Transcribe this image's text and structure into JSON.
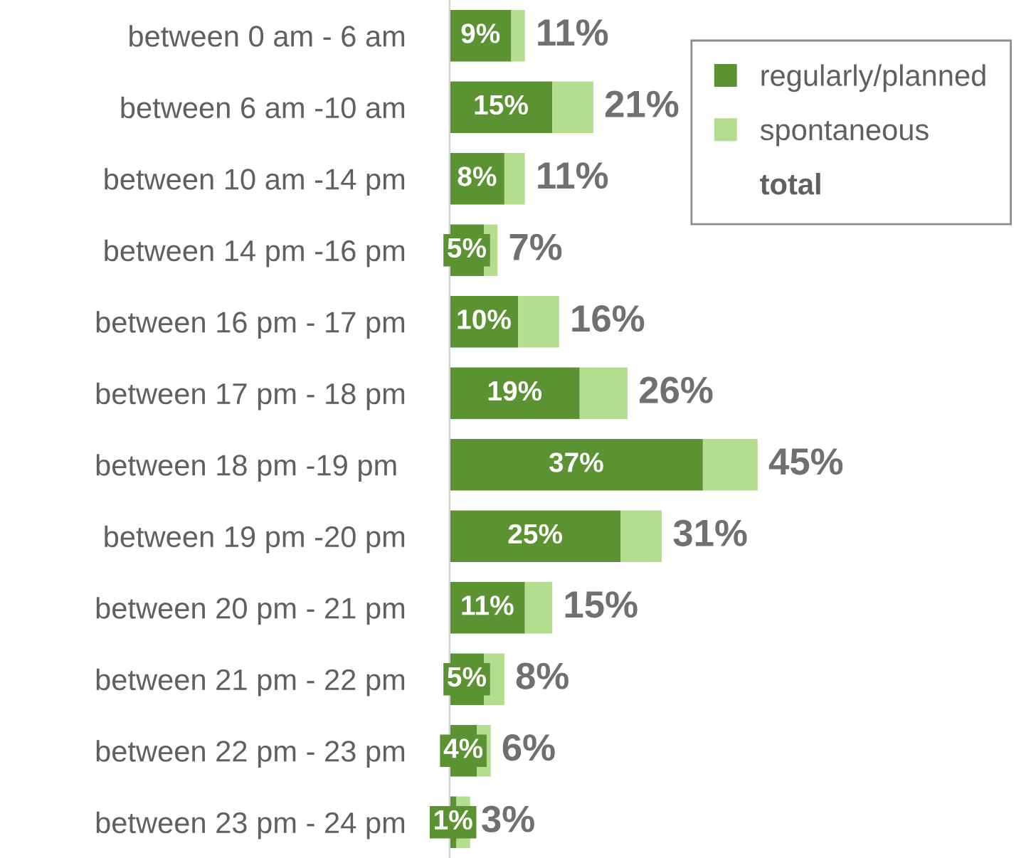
{
  "chart_data": {
    "type": "bar",
    "orientation": "horizontal",
    "stacked": true,
    "categories": [
      "between 0 am - 6 am",
      "between 6 am -10 am",
      "between 10 am -14 pm",
      "between 14 pm -16 pm",
      "between 16 pm - 17 pm",
      "between 17 pm - 18 pm",
      "between 18 pm -19 pm ",
      "between 19 pm -20 pm",
      "between 20 pm - 21 pm",
      "between 21 pm - 22 pm",
      "between 22 pm - 23 pm",
      "between 23 pm - 24 pm"
    ],
    "series": [
      {
        "name": "regularly/planned",
        "color": "#5b9232",
        "values": [
          9,
          15,
          8,
          5,
          10,
          19,
          37,
          25,
          11,
          5,
          4,
          1
        ],
        "value_labels": [
          "9%",
          "15%",
          "8%",
          "5%",
          "10%",
          "19%",
          "37%",
          "25%",
          "11%",
          "5%",
          "4%",
          "1%"
        ]
      },
      {
        "name": "spontaneous",
        "color": "#b5dd8f",
        "values": [
          2,
          6,
          3,
          2,
          6,
          7,
          8,
          6,
          4,
          3,
          2,
          2
        ]
      }
    ],
    "totals": [
      "11%",
      "21%",
      "11%",
      "7%",
      "16%",
      "26%",
      "45%",
      "31%",
      "15%",
      "8%",
      "6%",
      "3%"
    ],
    "annotations": [
      "total"
    ],
    "legend": "top right",
    "grid": false
  }
}
